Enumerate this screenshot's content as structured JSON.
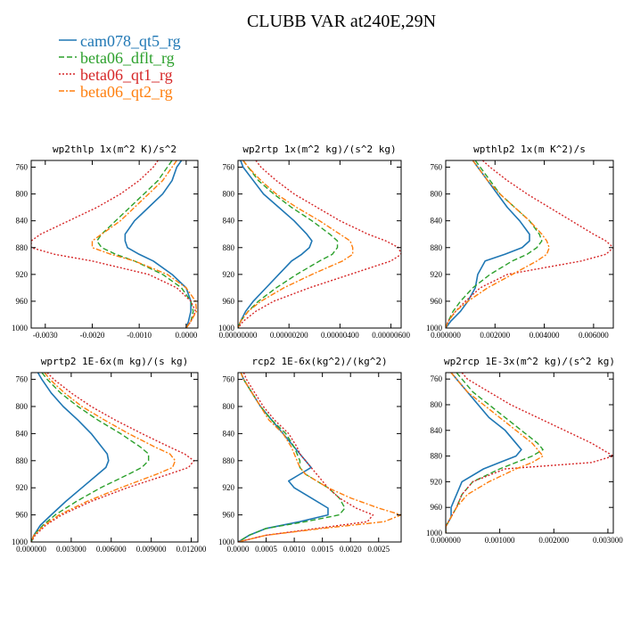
{
  "title": "CLUBB VAR at240E,29N",
  "legend": [
    {
      "label": "cam078_qt5_rg",
      "color": "#1f77b4",
      "dash": "solid"
    },
    {
      "label": "beta06_dflt_rg",
      "color": "#2ca02c",
      "dash": "dash"
    },
    {
      "label": "beta06_qt1_rg",
      "color": "#d62728",
      "dash": "dot"
    },
    {
      "label": "beta06_qt2_rg",
      "color": "#ff7f0e",
      "dash": "dashdot"
    }
  ],
  "chart_data": [
    {
      "type": "line",
      "title": "wp2thlp  1x(m^2 K)/s^2",
      "xlim": [
        -0.0033,
        0.00025
      ],
      "ylim": [
        1000,
        750
      ],
      "xticks": [
        -0.003,
        -0.002,
        -0.001,
        0.0
      ],
      "xtick_labels": [
        "-0.0030",
        "-0.0020",
        "-0.0010",
        "0.0000"
      ],
      "yticks": [
        760,
        800,
        840,
        880,
        920,
        960,
        1000
      ],
      "y": [
        750,
        760,
        780,
        800,
        820,
        840,
        860,
        870,
        880,
        890,
        900,
        920,
        940,
        960,
        975,
        990,
        1000
      ],
      "series": [
        {
          "name": "cam078_qt5_rg",
          "values": [
            -0.0001,
            -0.0002,
            -0.0003,
            -0.0005,
            -0.0008,
            -0.0011,
            -0.0013,
            -0.0013,
            -0.00125,
            -0.001,
            -0.0007,
            -0.0003,
            0.0,
            0.0001,
            0.0001,
            5e-05,
            0.0
          ]
        },
        {
          "name": "beta06_dflt_rg",
          "values": [
            -0.0003,
            -0.0004,
            -0.0006,
            -0.0009,
            -0.0012,
            -0.0015,
            -0.0018,
            -0.0019,
            -0.0018,
            -0.0015,
            -0.0011,
            -0.0005,
            -0.0001,
            0.0001,
            0.00015,
            0.0001,
            0.0
          ]
        },
        {
          "name": "beta06_qt1_rg",
          "values": [
            -0.0006,
            -0.0007,
            -0.001,
            -0.0014,
            -0.0019,
            -0.0025,
            -0.0031,
            -0.0033,
            -0.0033,
            -0.0028,
            -0.002,
            -0.0008,
            -0.0002,
            0.0001,
            0.0002,
            0.0001,
            0.0
          ]
        },
        {
          "name": "beta06_qt2_rg",
          "values": [
            -0.0002,
            -0.0003,
            -0.0005,
            -0.0008,
            -0.0011,
            -0.0014,
            -0.0018,
            -0.002,
            -0.002,
            -0.0016,
            -0.0011,
            -0.0004,
            0.0,
            0.0002,
            0.00022,
            0.0001,
            0.0
          ]
        }
      ]
    },
    {
      "type": "line",
      "title": "wp2rtp  1x(m^2 kg)/(s^2 kg)",
      "xlim": [
        0,
        6.4e-06
      ],
      "ylim": [
        1000,
        750
      ],
      "xticks": [
        0,
        2e-06,
        4e-06,
        6e-06
      ],
      "xtick_labels": [
        "0.00000000",
        "0.00000200",
        "0.00000400",
        "0.00000600"
      ],
      "yticks": [
        760,
        800,
        840,
        880,
        920,
        960,
        1000
      ],
      "y": [
        750,
        760,
        780,
        800,
        820,
        840,
        860,
        870,
        880,
        890,
        900,
        920,
        940,
        960,
        975,
        990,
        1000
      ],
      "series": [
        {
          "name": "cam078_qt5_rg",
          "values": [
            1e-07,
            2e-07,
            6e-07,
            1e-06,
            1.6e-06,
            2.2e-06,
            2.7e-06,
            2.9e-06,
            2.8e-06,
            2.5e-06,
            2.1e-06,
            1.6e-06,
            1.1e-06,
            6e-07,
            3e-07,
            1e-07,
            0.0
          ]
        },
        {
          "name": "beta06_dflt_rg",
          "values": [
            2e-07,
            4e-07,
            8e-07,
            1.4e-06,
            2.1e-06,
            2.9e-06,
            3.6e-06,
            3.9e-06,
            3.9e-06,
            3.7e-06,
            3.2e-06,
            2.3e-06,
            1.5e-06,
            8e-07,
            4e-07,
            1e-07,
            0.0
          ]
        },
        {
          "name": "beta06_qt1_rg",
          "values": [
            7e-07,
            9e-07,
            1.5e-06,
            2.2e-06,
            3.1e-06,
            4e-06,
            5.1e-06,
            5.8e-06,
            6.3e-06,
            6.4e-06,
            6e-06,
            4.4e-06,
            2.8e-06,
            1.4e-06,
            7e-07,
            2e-07,
            0.0
          ]
        },
        {
          "name": "beta06_qt2_rg",
          "values": [
            2e-07,
            4e-07,
            9e-07,
            1.5e-06,
            2.3e-06,
            3.2e-06,
            4e-06,
            4.4e-06,
            4.5e-06,
            4.5e-06,
            4.1e-06,
            2.9e-06,
            1.8e-06,
            9e-07,
            4e-07,
            1e-07,
            0.0
          ]
        }
      ]
    },
    {
      "type": "line",
      "title": "wpthlp2  1x(m K^2)/s",
      "xlim": [
        0,
        0.0068
      ],
      "ylim": [
        1000,
        750
      ],
      "xticks": [
        0,
        0.002,
        0.004,
        0.006
      ],
      "xtick_labels": [
        "0.000000",
        "0.002000",
        "0.004000",
        "0.006000"
      ],
      "yticks": [
        760,
        800,
        840,
        880,
        920,
        960,
        1000
      ],
      "y": [
        750,
        760,
        780,
        800,
        820,
        840,
        860,
        870,
        880,
        890,
        900,
        920,
        940,
        960,
        975,
        990,
        1000
      ],
      "series": [
        {
          "name": "cam078_qt5_rg",
          "values": [
            0.0011,
            0.0013,
            0.0017,
            0.0021,
            0.0025,
            0.003,
            0.0034,
            0.0034,
            0.0031,
            0.0024,
            0.0016,
            0.0013,
            0.0012,
            0.0009,
            0.0006,
            0.0002,
            0.0
          ]
        },
        {
          "name": "beta06_dflt_rg",
          "values": [
            0.0012,
            0.0014,
            0.0018,
            0.0022,
            0.0028,
            0.0034,
            0.0038,
            0.0039,
            0.0037,
            0.0033,
            0.0027,
            0.0018,
            0.0011,
            0.0006,
            0.0003,
            0.0001,
            0.0
          ]
        },
        {
          "name": "beta06_qt1_rg",
          "values": [
            0.0015,
            0.0018,
            0.0025,
            0.0033,
            0.0042,
            0.0051,
            0.006,
            0.0065,
            0.0068,
            0.0065,
            0.0055,
            0.0025,
            0.0014,
            0.0008,
            0.0004,
            0.0001,
            0.0
          ]
        },
        {
          "name": "beta06_qt2_rg",
          "values": [
            0.0011,
            0.0013,
            0.0017,
            0.0022,
            0.0028,
            0.0034,
            0.0039,
            0.0041,
            0.0042,
            0.0041,
            0.0037,
            0.0027,
            0.0017,
            0.0009,
            0.0004,
            0.0001,
            0.0
          ]
        }
      ]
    },
    {
      "type": "line",
      "title": "wprtp2  1E-6x(m kg)/(s kg)",
      "xlim": [
        0,
        0.0125
      ],
      "ylim": [
        1000,
        750
      ],
      "xticks": [
        0,
        0.003,
        0.006,
        0.009,
        0.012
      ],
      "xtick_labels": [
        "0.000000",
        "0.003000",
        "0.006000",
        "0.009000",
        "0.012000"
      ],
      "yticks": [
        760,
        800,
        840,
        880,
        920,
        960,
        1000
      ],
      "y": [
        750,
        760,
        780,
        800,
        820,
        840,
        860,
        870,
        880,
        890,
        900,
        920,
        940,
        960,
        975,
        990,
        1000
      ],
      "series": [
        {
          "name": "cam078_qt5_rg",
          "values": [
            0.0005,
            0.0008,
            0.0015,
            0.0024,
            0.0035,
            0.0045,
            0.0053,
            0.0057,
            0.0058,
            0.0056,
            0.005,
            0.0038,
            0.0026,
            0.0015,
            0.0007,
            0.0002,
            0.0
          ]
        },
        {
          "name": "beta06_dflt_rg",
          "values": [
            0.0008,
            0.0012,
            0.0022,
            0.0035,
            0.005,
            0.0067,
            0.0082,
            0.0088,
            0.0088,
            0.0083,
            0.0073,
            0.0052,
            0.0034,
            0.0018,
            0.0009,
            0.0002,
            0.0
          ]
        },
        {
          "name": "beta06_qt1_rg",
          "values": [
            0.0012,
            0.0017,
            0.003,
            0.0045,
            0.0063,
            0.0083,
            0.0104,
            0.0115,
            0.0122,
            0.0118,
            0.0103,
            0.0072,
            0.0045,
            0.0023,
            0.0011,
            0.0003,
            0.0
          ]
        },
        {
          "name": "beta06_qt2_rg",
          "values": [
            0.001,
            0.0014,
            0.0025,
            0.0038,
            0.0055,
            0.0073,
            0.0093,
            0.0104,
            0.0108,
            0.0106,
            0.0094,
            0.0067,
            0.0042,
            0.0021,
            0.001,
            0.0002,
            0.0
          ]
        }
      ]
    },
    {
      "type": "line",
      "title": "rcp2  1E-6x(kg^2)/(kg^2)",
      "xlim": [
        0,
        0.0029
      ],
      "ylim": [
        1000,
        750
      ],
      "xticks": [
        0,
        0.0005,
        0.001,
        0.0015,
        0.002,
        0.0025
      ],
      "xtick_labels": [
        "0.0000",
        "0.0005",
        "0.0010",
        "0.0015",
        "0.0020",
        "0.0025"
      ],
      "yticks": [
        760,
        800,
        840,
        880,
        920,
        960,
        1000
      ],
      "y": [
        750,
        760,
        780,
        800,
        820,
        840,
        860,
        870,
        880,
        890,
        900,
        910,
        920,
        935,
        950,
        960,
        970,
        980,
        990,
        1000
      ],
      "series": [
        {
          "name": "cam078_qt5_rg",
          "values": [
            5e-05,
            0.0001,
            0.00025,
            0.0004,
            0.0006,
            0.0008,
            0.001,
            0.0011,
            0.0012,
            0.0013,
            0.0011,
            0.0009,
            0.001,
            0.0013,
            0.0016,
            0.0016,
            0.0011,
            0.0005,
            0.0002,
            0.0
          ]
        },
        {
          "name": "beta06_dflt_rg",
          "values": [
            5e-05,
            0.0001,
            0.00025,
            0.0004,
            0.0006,
            0.00085,
            0.001,
            0.00105,
            0.0011,
            0.0011,
            0.0012,
            0.0014,
            0.0016,
            0.0018,
            0.0019,
            0.0018,
            0.0012,
            0.0005,
            0.0002,
            0.0
          ]
        },
        {
          "name": "beta06_qt1_rg",
          "values": [
            0.0001,
            0.00015,
            0.0003,
            0.00045,
            0.00065,
            0.0009,
            0.00105,
            0.0011,
            0.0012,
            0.0013,
            0.0014,
            0.0015,
            0.0016,
            0.0018,
            0.0021,
            0.0024,
            0.0023,
            0.0014,
            0.0005,
            0.0
          ]
        },
        {
          "name": "beta06_qt2_rg",
          "values": [
            5e-05,
            0.0001,
            0.00025,
            0.0004,
            0.00055,
            0.0008,
            0.00095,
            0.001,
            0.00105,
            0.0011,
            0.0012,
            0.0014,
            0.0016,
            0.002,
            0.0025,
            0.0029,
            0.0026,
            0.0015,
            0.0005,
            0.0
          ]
        }
      ]
    },
    {
      "type": "line",
      "title": "wp2rcp  1E-3x(m^2 kg)/(s^2 kg)",
      "xlim": [
        0,
        0.0031
      ],
      "ylim": [
        1000,
        750
      ],
      "xticks": [
        0,
        0.001,
        0.002,
        0.003
      ],
      "xtick_labels": [
        "0.000000",
        "0.001000",
        "0.002000",
        "0.003000"
      ],
      "yticks": [
        760,
        800,
        840,
        880,
        920,
        960,
        1000
      ],
      "y": [
        750,
        760,
        780,
        800,
        820,
        840,
        860,
        870,
        880,
        890,
        900,
        920,
        940,
        960,
        975,
        990,
        1000
      ],
      "series": [
        {
          "name": "cam078_qt5_rg",
          "values": [
            0.0001,
            0.0002,
            0.0004,
            0.0006,
            0.0008,
            0.0011,
            0.0013,
            0.0014,
            0.0013,
            0.001,
            0.0007,
            0.0003,
            0.0002,
            0.0001,
            0.0001,
            0.0,
            0.0
          ]
        },
        {
          "name": "beta06_dflt_rg",
          "values": [
            0.0002,
            0.0003,
            0.0005,
            0.0008,
            0.0011,
            0.0014,
            0.0017,
            0.0018,
            0.0016,
            0.0013,
            0.001,
            0.0005,
            0.0003,
            0.0002,
            0.0001,
            0.0,
            0.0
          ]
        },
        {
          "name": "beta06_qt1_rg",
          "values": [
            0.0003,
            0.0004,
            0.0008,
            0.0012,
            0.0017,
            0.0022,
            0.0027,
            0.0029,
            0.0031,
            0.0027,
            0.0011,
            0.0005,
            0.0003,
            0.0002,
            0.0001,
            0.0,
            0.0
          ]
        },
        {
          "name": "beta06_qt2_rg",
          "values": [
            0.0001,
            0.0002,
            0.0004,
            0.0007,
            0.001,
            0.0013,
            0.0016,
            0.0017,
            0.0018,
            0.0016,
            0.0013,
            0.0008,
            0.0004,
            0.0002,
            0.0001,
            0.0,
            0.0
          ]
        }
      ]
    }
  ]
}
